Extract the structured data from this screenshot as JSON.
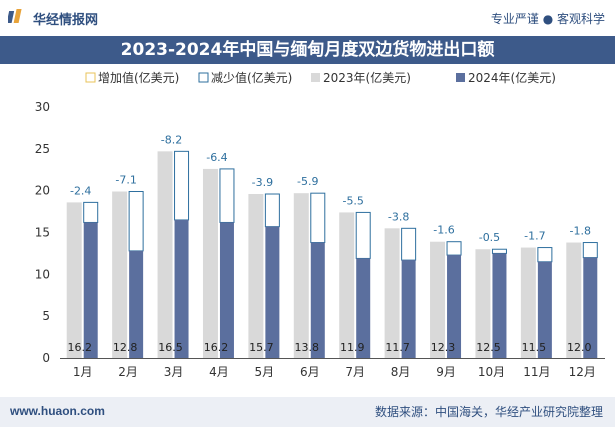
{
  "header": {
    "site_name": "华经情报网",
    "slogan": "专业严谨 ● 客观科学"
  },
  "footer": {
    "url": "www.huaon.com",
    "source": "数据来源：中国海关，华经产业研究院整理"
  },
  "colors": {
    "title_bg": "#3d5a8a",
    "bar_2023": "#d9d9d9",
    "bar_2024": "#5b6f9e",
    "increase_marker": "#e8c35a",
    "decrease_marker": "#2e6f9e",
    "label_text": "#2e6f9e"
  },
  "chart_data": {
    "type": "bar",
    "title": "2023-2024年中国与缅甸月度双边货物进出口额",
    "legend": [
      "增加值(亿美元)",
      "减少值(亿美元)",
      "2023年(亿美元)",
      "2024年(亿美元)"
    ],
    "legend_position": "top",
    "categories": [
      "1月",
      "2月",
      "3月",
      "4月",
      "5月",
      "6月",
      "7月",
      "8月",
      "9月",
      "10月",
      "11月",
      "12月"
    ],
    "series": [
      {
        "name": "2023年(亿美元)",
        "values": [
          18.6,
          19.9,
          24.7,
          22.6,
          19.6,
          19.7,
          17.4,
          15.5,
          13.9,
          13.0,
          13.2,
          13.8
        ]
      },
      {
        "name": "2024年(亿美元)",
        "values": [
          16.2,
          12.8,
          16.5,
          16.2,
          15.7,
          13.8,
          11.9,
          11.7,
          12.3,
          12.5,
          11.5,
          12.0
        ]
      }
    ],
    "change": [
      -2.4,
      -7.1,
      -8.2,
      -6.4,
      -3.9,
      -5.9,
      -5.5,
      -3.8,
      -1.6,
      -0.5,
      -1.7,
      -1.8
    ],
    "change_labels": [
      "-2.4",
      "-7.1",
      "-8.2",
      "-6.4",
      "-3.9",
      "-5.9",
      "-5.5",
      "-3.8",
      "-1.6",
      "-0.5",
      "-1.7",
      "-1.8"
    ],
    "value_labels_2024": [
      "16.2",
      "12.8",
      "16.5",
      "16.2",
      "15.7",
      "13.8",
      "11.9",
      "11.7",
      "12.3",
      "12.5",
      "11.5",
      "12.0"
    ],
    "ylim": [
      0,
      30
    ],
    "yticks": [
      "0",
      "5",
      "10",
      "15",
      "20",
      "25",
      "30"
    ],
    "grid": false
  }
}
